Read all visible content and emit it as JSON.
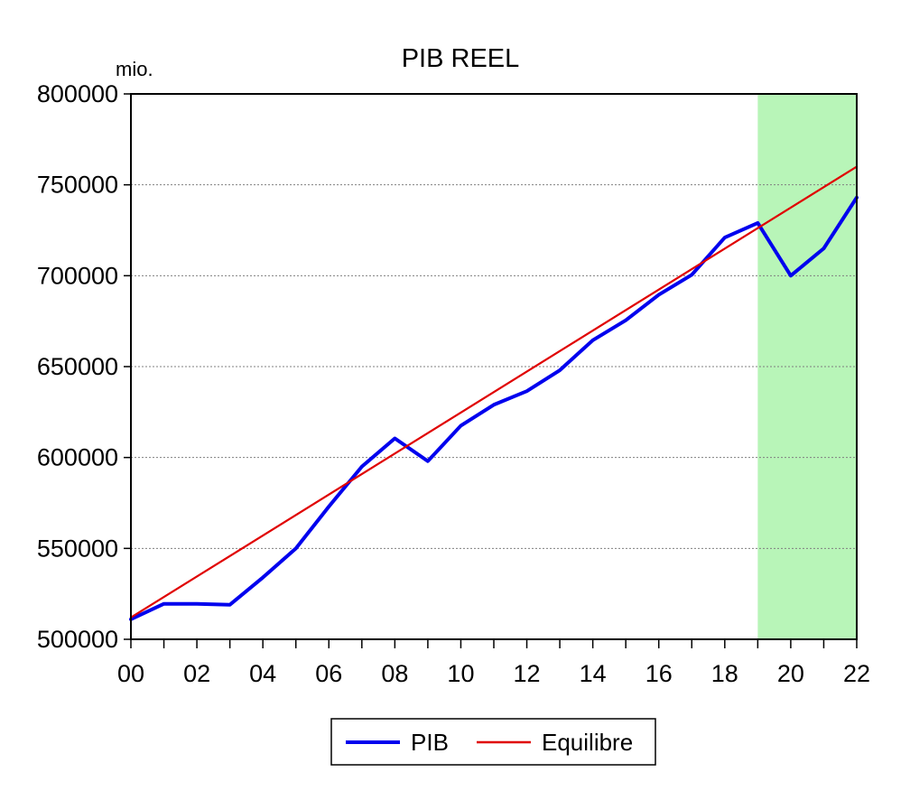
{
  "chart_data": {
    "type": "line",
    "title": "PIB REEL",
    "unit_label": "mio.",
    "xlabel": "",
    "ylabel": "",
    "x_start": 0,
    "x_end": 22,
    "xlim": [
      0,
      22
    ],
    "ylim": [
      500000,
      800000
    ],
    "x_ticks": [
      "00",
      "02",
      "04",
      "06",
      "08",
      "10",
      "12",
      "14",
      "16",
      "18",
      "20",
      "22"
    ],
    "y_ticks": [
      "500000",
      "550000",
      "600000",
      "650000",
      "700000",
      "750000",
      "800000"
    ],
    "grid": "horizontal dotted",
    "shaded_region": {
      "from": 19,
      "to": 22,
      "color": "#b8f5b8"
    },
    "series": [
      {
        "name": "PIB",
        "color": "#0000ee",
        "x": [
          "00",
          "01",
          "02",
          "03",
          "04",
          "05",
          "06",
          "07",
          "08",
          "09",
          "10",
          "11",
          "12",
          "13",
          "14",
          "15",
          "16",
          "17",
          "18",
          "19",
          "20",
          "21",
          "22"
        ],
        "values": [
          511000,
          519500,
          519500,
          519000,
          534000,
          550000,
          573000,
          595000,
          610500,
          598000,
          617500,
          629000,
          636500,
          648000,
          664500,
          675500,
          689500,
          700500,
          721000,
          729000,
          700000,
          715000,
          743000
        ]
      },
      {
        "name": "Equilibre",
        "color": "#e00000",
        "x": [
          "00",
          "22"
        ],
        "values": [
          512000,
          760000
        ]
      }
    ],
    "legend": {
      "position": "bottom-center",
      "entries": [
        "PIB",
        "Equilibre"
      ]
    }
  }
}
